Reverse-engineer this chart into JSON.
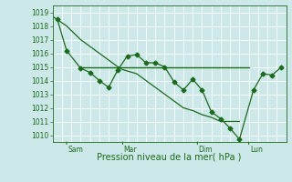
{
  "xlabel": "Pression niveau de la mer( hPa )",
  "bg_color": "#cce8e8",
  "grid_color": "#ffffff",
  "line_color": "#1a6b1a",
  "ylim": [
    1009.5,
    1019.5
  ],
  "xlim": [
    0,
    100
  ],
  "yticks": [
    1010,
    1011,
    1012,
    1013,
    1014,
    1015,
    1016,
    1017,
    1018,
    1019
  ],
  "day_ticks": [
    {
      "x": 6,
      "label": "Sam"
    },
    {
      "x": 30,
      "label": "Mar"
    },
    {
      "x": 62,
      "label": "Dim"
    },
    {
      "x": 84,
      "label": "Lun"
    }
  ],
  "series_markers_x": [
    2,
    6,
    12,
    16,
    20,
    24,
    28,
    32,
    36,
    40,
    44,
    48,
    52,
    56,
    60,
    64,
    68,
    72,
    76,
    80,
    86,
    90,
    94,
    98
  ],
  "series_markers_y": [
    1018.5,
    1016.2,
    1014.9,
    1014.6,
    1014.0,
    1013.5,
    1014.8,
    1015.8,
    1015.9,
    1015.3,
    1015.3,
    1015.0,
    1013.9,
    1013.3,
    1014.1,
    1013.3,
    1011.7,
    1011.2,
    1010.5,
    1009.7,
    1013.3,
    1014.5,
    1014.4,
    1015.0
  ],
  "series_smooth_x": [
    0,
    6,
    12,
    16,
    20,
    24,
    28,
    30,
    36,
    40,
    44,
    48,
    52,
    56,
    60,
    64,
    68,
    72,
    76,
    80
  ],
  "series_smooth_y": [
    1018.7,
    1018.0,
    1017.0,
    1016.5,
    1016.0,
    1015.5,
    1015.0,
    1014.8,
    1014.5,
    1014.0,
    1013.5,
    1013.0,
    1012.5,
    1012.0,
    1011.8,
    1011.5,
    1011.3,
    1011.0,
    1011.0,
    1011.0
  ],
  "flat_line_y": 1015.0,
  "flat_line_x_start": 12,
  "flat_line_x_end": 84,
  "vert_grid_step": 4,
  "marker_style": "D",
  "marker_size": 2.5
}
